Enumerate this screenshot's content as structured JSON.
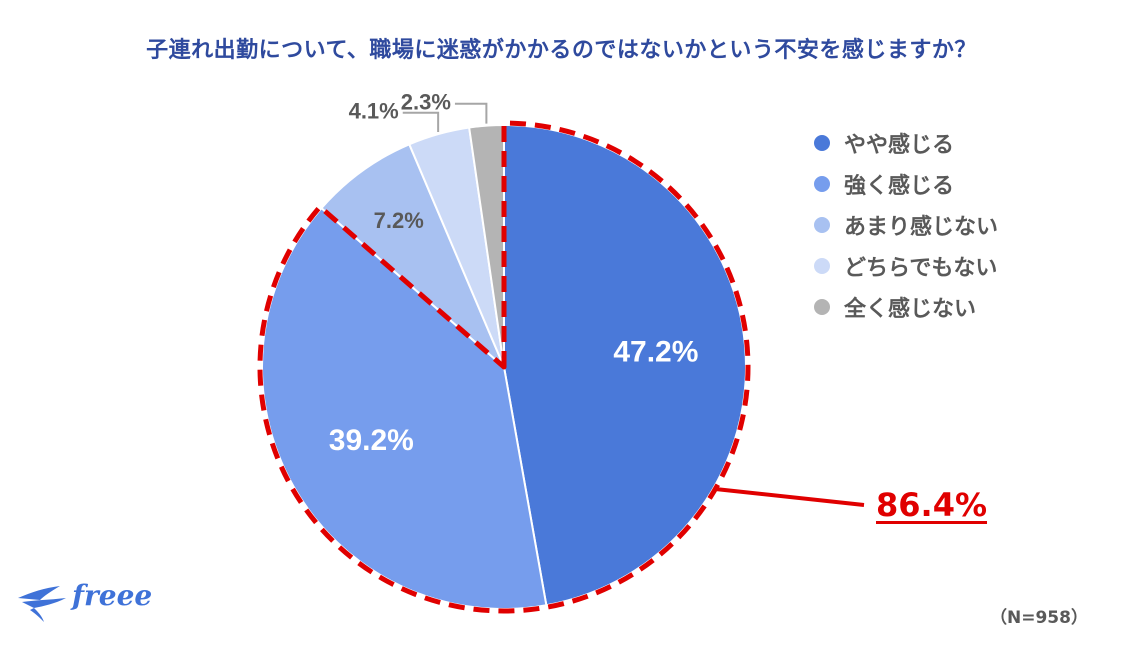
{
  "title": "子連れ出勤について、職場に迷惑がかかるのではないかという不安を感じますか？",
  "chart_data": {
    "type": "pie",
    "title": "子連れ出勤について、職場に迷惑がかかるのではないかという不安を感じますか？",
    "categories": [
      "やや感じる",
      "強く感じる",
      "あまり感じない",
      "どちらでもない",
      "全く感じない"
    ],
    "values": [
      47.2,
      39.2,
      7.2,
      4.1,
      2.3
    ],
    "labels": [
      "47.2%",
      "39.2%",
      "7.2%",
      "4.1%",
      "2.3%"
    ],
    "colors": [
      "#4a79d9",
      "#769ded",
      "#a8c1f1",
      "#ccdaf7",
      "#b4b4b4"
    ],
    "label_colors": [
      "#ffffff",
      "#ffffff",
      "#595959",
      "#595959",
      "#595959"
    ],
    "legend_position": "right",
    "highlight": {
      "label": "86.4%",
      "categories": [
        "やや感じる",
        "強く感じる"
      ],
      "color": "#e00000"
    }
  },
  "footnote": "（N=958）",
  "brand": "freee"
}
